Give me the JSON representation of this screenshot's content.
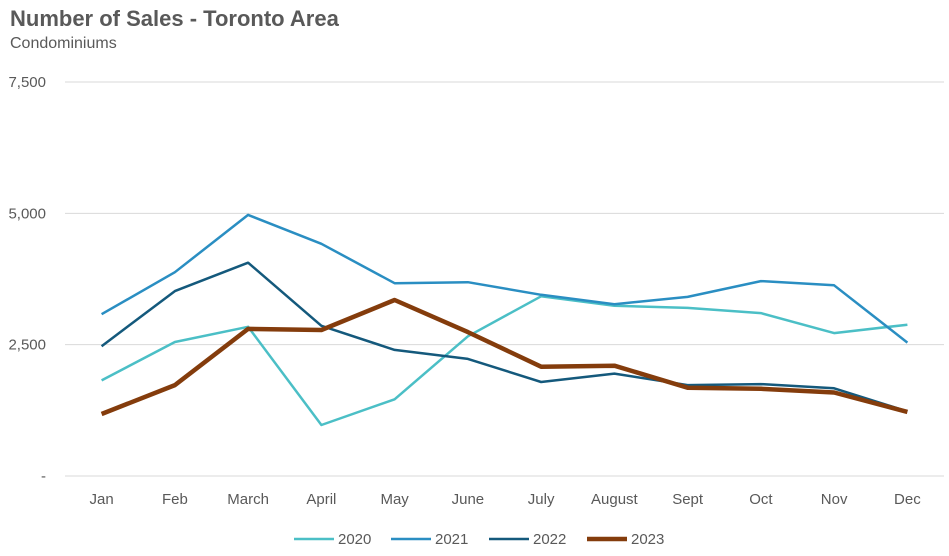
{
  "chart_data": {
    "type": "line",
    "title": "Number of Sales - Toronto Area",
    "subtitle": "Condominiums",
    "categories": [
      "Jan",
      "Feb",
      "March",
      "April",
      "May",
      "June",
      "July",
      "August",
      "Sept",
      "Oct",
      "Nov",
      "Dec"
    ],
    "ylim": [
      0,
      7500
    ],
    "yticks": [
      0,
      2500,
      5000,
      7500
    ],
    "ytick_labels": [
      "-",
      "2,500",
      "5,000",
      "7,500"
    ],
    "grid": true,
    "legend_position": "bottom",
    "series": [
      {
        "name": "2020",
        "color": "#4bbfc6",
        "values": [
          1820,
          2550,
          2840,
          970,
          1460,
          2660,
          3420,
          3240,
          3200,
          3100,
          2720,
          2880
        ]
      },
      {
        "name": "2021",
        "color": "#2a8ec2",
        "values": [
          3080,
          3880,
          4970,
          4420,
          3670,
          3690,
          3450,
          3270,
          3410,
          3710,
          3630,
          2540
        ]
      },
      {
        "name": "2022",
        "color": "#14597c",
        "values": [
          2470,
          3520,
          4060,
          2860,
          2400,
          2230,
          1790,
          1950,
          1730,
          1750,
          1670,
          1230
        ]
      },
      {
        "name": "2023",
        "color": "#843c0c",
        "values": [
          1180,
          1730,
          2800,
          2780,
          3350,
          2740,
          2080,
          2100,
          1680,
          1660,
          1590,
          1220
        ]
      }
    ]
  }
}
